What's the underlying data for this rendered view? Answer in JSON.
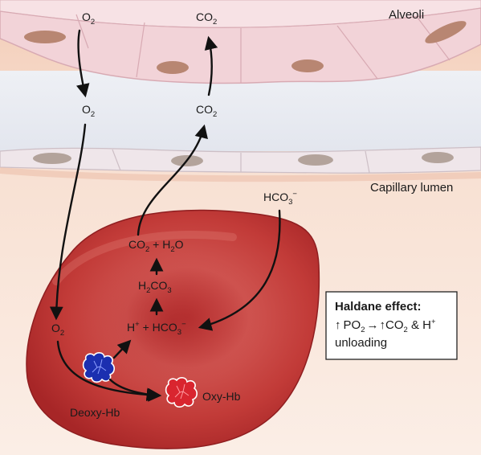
{
  "regions": {
    "alveoli": "Alveoli",
    "capillary": "Capillary lumen"
  },
  "molecules": {
    "o2": {
      "base": "O",
      "sub": "2"
    },
    "co2": {
      "base": "CO",
      "sub": "2"
    },
    "hco3_plasma": {
      "base": "HCO",
      "sub": "3",
      "sup": "−"
    },
    "co2_h2o": {
      "a": "CO",
      "a_sub": "2",
      "mid": " + H",
      "b_sub": "2",
      "tail": "O"
    },
    "h2co3": {
      "a": "H",
      "a_sub": "2",
      "tail": "CO",
      "b_sub": "3"
    },
    "h_hco3": {
      "a": "H",
      "a_sup": "+",
      "mid": " + HCO",
      "b_sub": "3",
      "b_sup": "−"
    }
  },
  "hemoglobin": {
    "deoxy": "Deoxy-Hb",
    "oxy": "Oxy-Hb",
    "deoxy_color": "#1b2fb0",
    "oxy_color": "#d9252f"
  },
  "haldane": {
    "title": "Haldane effect:",
    "up_arrow": "↑",
    "po": "PO",
    "po_sub": "2",
    "right_arrow": "→",
    "co": "CO",
    "co_sub": "2",
    "amp_h": " & H",
    "h_sup": "+",
    "line3": "unloading"
  },
  "colors": {
    "alveolar_wall": "#f2d6da",
    "nucleus": "#b88672",
    "capillary_wall": "#efe7ea",
    "plasma": "#f6dccd",
    "rbc": "#c0403c",
    "rbc_dark": "#9c2326"
  }
}
